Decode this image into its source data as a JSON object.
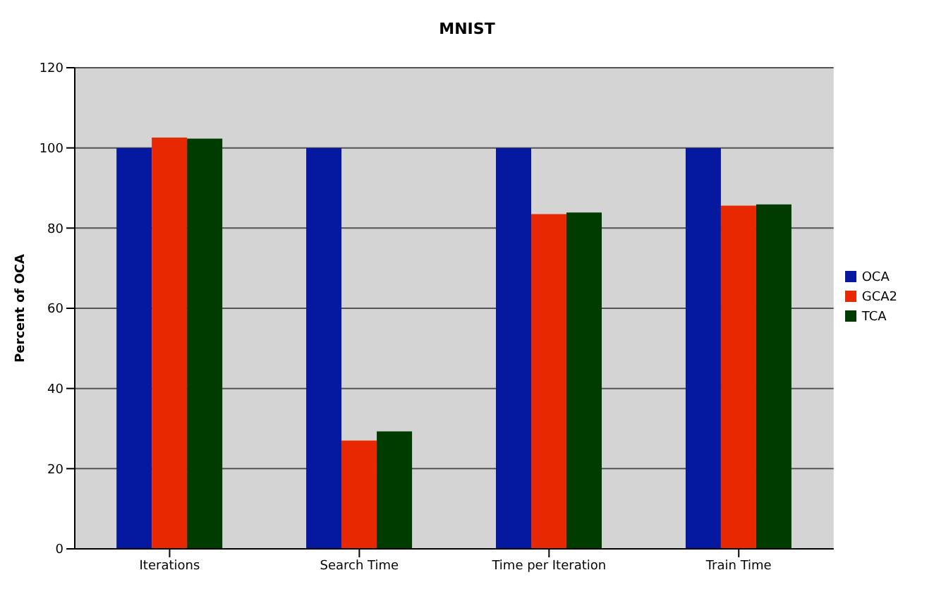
{
  "chart_data": {
    "type": "bar",
    "title": "MNIST",
    "ylabel": "Percent of OCA",
    "categories": [
      "Iterations",
      "Search Time",
      "Time per Iteration",
      "Train Time"
    ],
    "series": [
      {
        "name": "OCA",
        "color": "#0418a0",
        "values": [
          100,
          100,
          100,
          100
        ]
      },
      {
        "name": "GCA2",
        "color": "#e82800",
        "values": [
          102.6,
          27,
          83.5,
          85.6
        ]
      },
      {
        "name": "TCA",
        "color": "#003c00",
        "values": [
          102.3,
          29.3,
          83.9,
          85.9
        ]
      }
    ],
    "ylim": [
      0,
      120
    ],
    "yticks": [
      0,
      20,
      40,
      60,
      80,
      100,
      120
    ],
    "grid": "y",
    "legend": "right"
  }
}
